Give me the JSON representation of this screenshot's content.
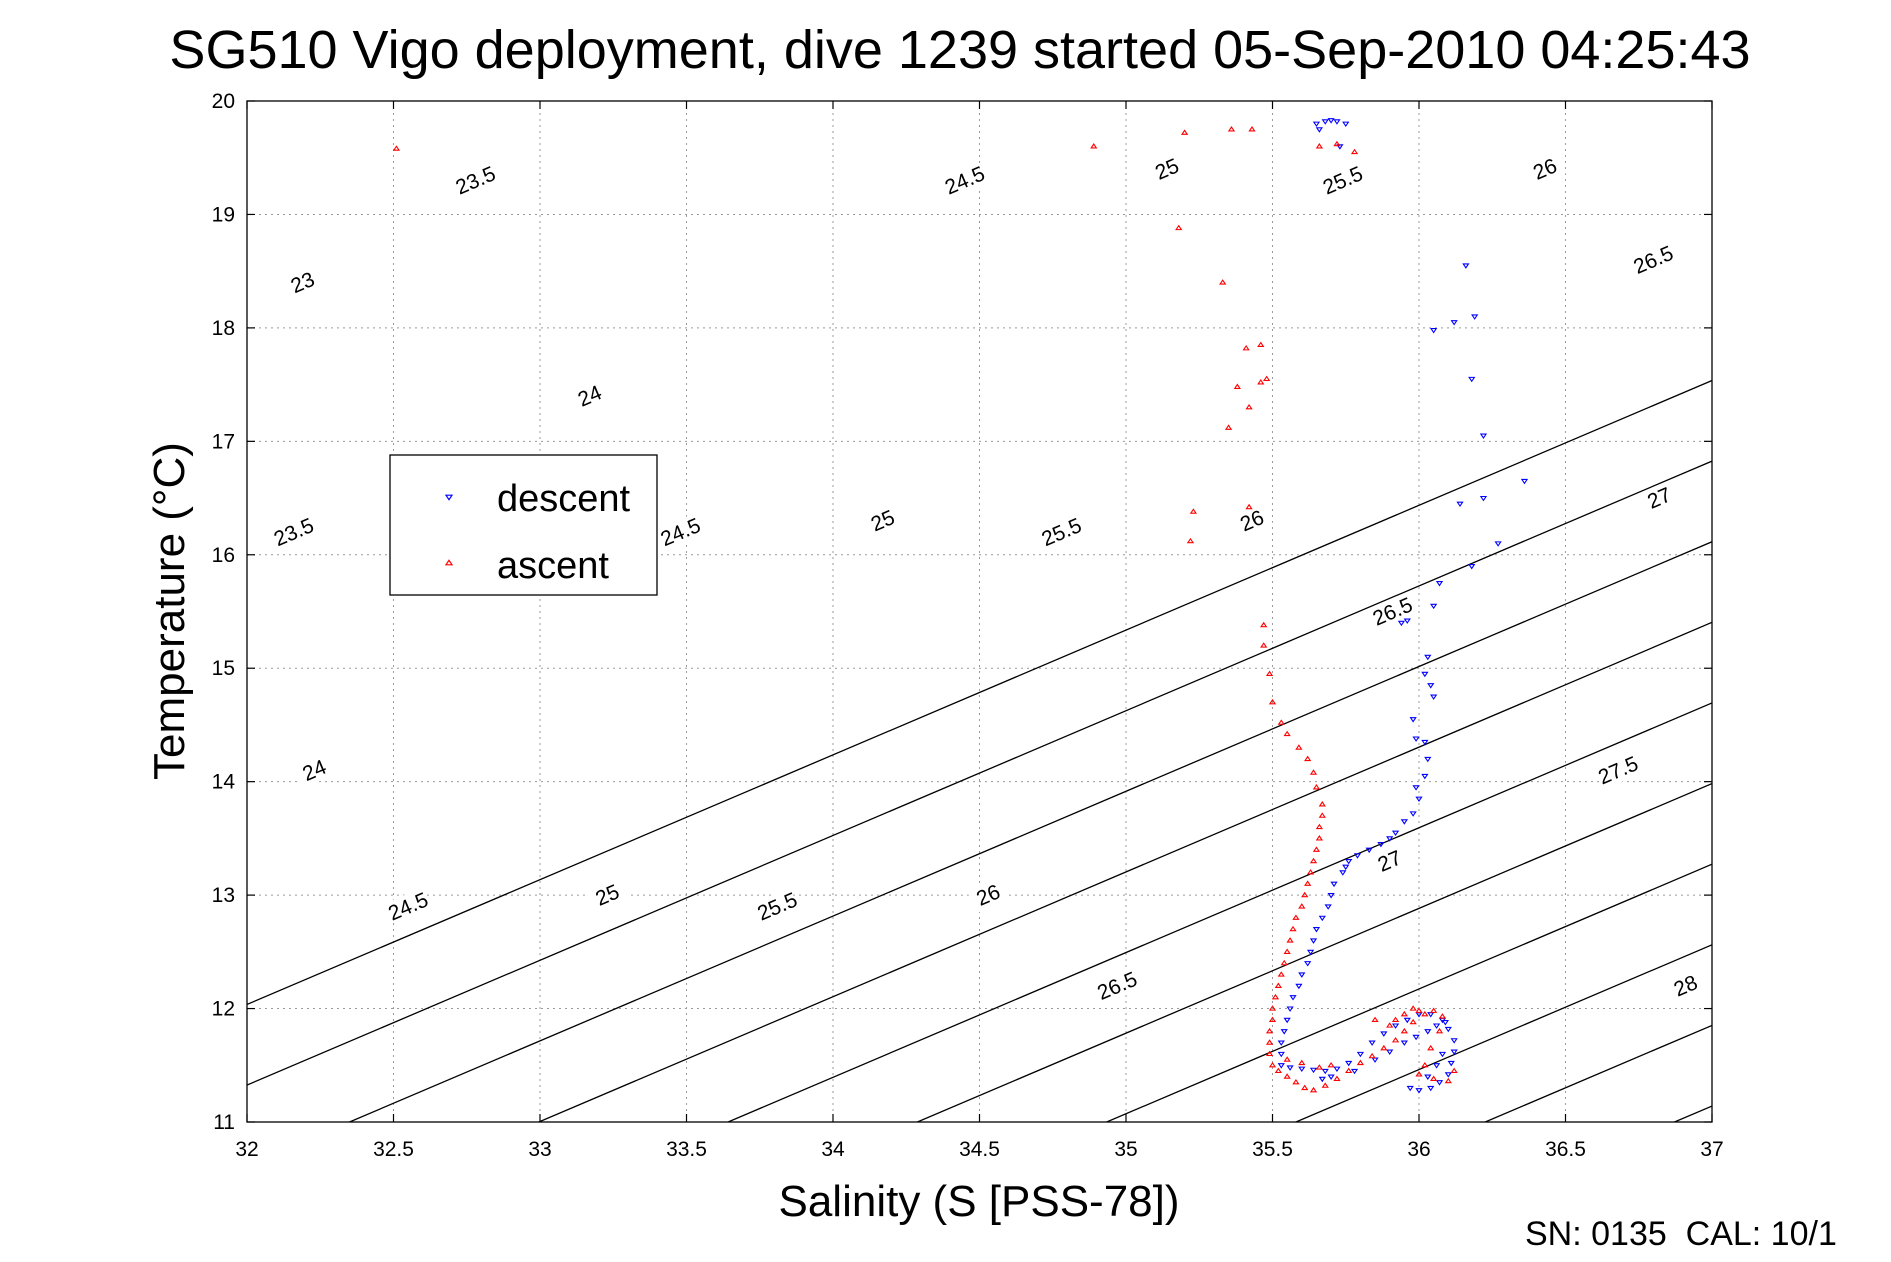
{
  "chart_data": {
    "type": "scatter",
    "title": "SG510 Vigo deployment, dive 1239 started 05-Sep-2010 04:25:43",
    "xlabel": "Salinity (S [PSS-78])",
    "ylabel": "Temperature (°C)",
    "xlim": [
      32,
      37
    ],
    "ylim": [
      11,
      20
    ],
    "x_ticks": [
      "32",
      "32.5",
      "33",
      "33.5",
      "34",
      "34.5",
      "35",
      "35.5",
      "36",
      "36.5",
      "37"
    ],
    "y_ticks": [
      "11",
      "12",
      "13",
      "14",
      "15",
      "16",
      "17",
      "18",
      "19",
      "20"
    ],
    "grid": true,
    "legend_position": "upper-left",
    "footer": "SN: 0135  CAL: 10/1",
    "contours": {
      "description_values": [
        23,
        23.5,
        24,
        24.5,
        25,
        25.5,
        26,
        26.5,
        27,
        27.5,
        28
      ],
      "labels": [
        {
          "text": "23",
          "s": 32.19,
          "t": 18.4
        },
        {
          "text": "23.5",
          "s": 32.78,
          "t": 19.3
        },
        {
          "text": "24.5",
          "s": 34.45,
          "t": 19.3
        },
        {
          "text": "25",
          "s": 35.14,
          "t": 19.4
        },
        {
          "text": "25.5",
          "s": 35.74,
          "t": 19.3
        },
        {
          "text": "26",
          "s": 36.43,
          "t": 19.4
        },
        {
          "text": "26.5",
          "s": 36.8,
          "t": 18.6
        },
        {
          "text": "24",
          "s": 33.17,
          "t": 17.4
        },
        {
          "text": "23.5",
          "s": 32.16,
          "t": 16.2
        },
        {
          "text": "24.5",
          "s": 33.48,
          "t": 16.2
        },
        {
          "text": "25",
          "s": 34.17,
          "t": 16.3
        },
        {
          "text": "25.5",
          "s": 34.78,
          "t": 16.2
        },
        {
          "text": "26",
          "s": 35.43,
          "t": 16.3
        },
        {
          "text": "27",
          "s": 36.82,
          "t": 16.5
        },
        {
          "text": "26.5",
          "s": 35.91,
          "t": 15.5
        },
        {
          "text": "24",
          "s": 32.23,
          "t": 14.1
        },
        {
          "text": "27.5",
          "s": 36.68,
          "t": 14.1
        },
        {
          "text": "24.5",
          "s": 32.55,
          "t": 12.9
        },
        {
          "text": "25",
          "s": 33.23,
          "t": 13.0
        },
        {
          "text": "25.5",
          "s": 33.81,
          "t": 12.9
        },
        {
          "text": "26",
          "s": 34.53,
          "t": 13.0
        },
        {
          "text": "27",
          "s": 35.9,
          "t": 13.3
        },
        {
          "text": "26.5",
          "s": 34.97,
          "t": 12.2
        },
        {
          "text": "28",
          "s": 36.91,
          "t": 12.2
        }
      ]
    },
    "series": [
      {
        "name": "descent",
        "color": "#0000ff",
        "marker": "triangle-down",
        "points": [
          [
            35.65,
            19.8
          ],
          [
            35.68,
            19.82
          ],
          [
            35.7,
            19.83
          ],
          [
            35.72,
            19.82
          ],
          [
            35.75,
            19.8
          ],
          [
            35.66,
            19.75
          ],
          [
            35.73,
            19.6
          ],
          [
            36.16,
            18.55
          ],
          [
            36.19,
            18.1
          ],
          [
            36.12,
            18.05
          ],
          [
            36.05,
            17.98
          ],
          [
            36.18,
            17.55
          ],
          [
            36.22,
            17.05
          ],
          [
            36.36,
            16.65
          ],
          [
            36.22,
            16.5
          ],
          [
            36.14,
            16.45
          ],
          [
            36.27,
            16.1
          ],
          [
            36.18,
            15.9
          ],
          [
            36.07,
            15.75
          ],
          [
            36.05,
            15.55
          ],
          [
            35.96,
            15.42
          ],
          [
            35.94,
            15.4
          ],
          [
            36.03,
            15.1
          ],
          [
            36.02,
            14.95
          ],
          [
            36.04,
            14.85
          ],
          [
            36.05,
            14.75
          ],
          [
            35.98,
            14.55
          ],
          [
            35.99,
            14.38
          ],
          [
            36.02,
            14.35
          ],
          [
            36.03,
            14.2
          ],
          [
            36.02,
            14.05
          ],
          [
            35.99,
            13.95
          ],
          [
            36.0,
            13.85
          ],
          [
            35.98,
            13.72
          ],
          [
            35.95,
            13.65
          ],
          [
            35.92,
            13.55
          ],
          [
            35.9,
            13.5
          ],
          [
            35.87,
            13.45
          ],
          [
            35.83,
            13.4
          ],
          [
            35.79,
            13.35
          ],
          [
            35.76,
            13.3
          ],
          [
            35.75,
            13.25
          ],
          [
            35.74,
            13.2
          ],
          [
            35.71,
            13.1
          ],
          [
            35.7,
            13.0
          ],
          [
            35.69,
            12.9
          ],
          [
            35.67,
            12.8
          ],
          [
            35.65,
            12.7
          ],
          [
            35.64,
            12.6
          ],
          [
            35.63,
            12.5
          ],
          [
            35.62,
            12.4
          ],
          [
            35.6,
            12.3
          ],
          [
            35.59,
            12.2
          ],
          [
            35.57,
            12.1
          ],
          [
            35.56,
            12.0
          ],
          [
            35.55,
            11.9
          ],
          [
            35.54,
            11.8
          ],
          [
            35.53,
            11.7
          ],
          [
            35.53,
            11.6
          ],
          [
            35.53,
            11.5
          ],
          [
            35.56,
            11.48
          ],
          [
            35.6,
            11.47
          ],
          [
            35.64,
            11.46
          ],
          [
            35.68,
            11.45
          ],
          [
            35.72,
            11.47
          ],
          [
            35.76,
            11.52
          ],
          [
            35.8,
            11.6
          ],
          [
            35.84,
            11.7
          ],
          [
            35.88,
            11.78
          ],
          [
            35.92,
            11.85
          ],
          [
            35.96,
            11.9
          ],
          [
            36.0,
            11.95
          ],
          [
            36.04,
            11.95
          ],
          [
            36.08,
            11.9
          ],
          [
            36.1,
            11.82
          ],
          [
            36.12,
            11.72
          ],
          [
            36.12,
            11.62
          ],
          [
            36.11,
            11.52
          ],
          [
            36.1,
            11.42
          ],
          [
            36.07,
            11.35
          ],
          [
            36.04,
            11.3
          ],
          [
            36.0,
            11.28
          ],
          [
            35.97,
            11.3
          ],
          [
            36.03,
            11.4
          ],
          [
            36.06,
            11.5
          ],
          [
            36.08,
            11.6
          ],
          [
            35.67,
            11.38
          ],
          [
            35.7,
            11.4
          ],
          [
            35.78,
            11.45
          ],
          [
            35.85,
            11.55
          ],
          [
            35.9,
            11.62
          ],
          [
            35.95,
            11.7
          ],
          [
            35.99,
            11.75
          ],
          [
            36.03,
            11.8
          ],
          [
            36.06,
            11.85
          ],
          [
            36.09,
            11.88
          ]
        ]
      },
      {
        "name": "ascent",
        "color": "#ff0000",
        "marker": "triangle-up",
        "points": [
          [
            32.51,
            19.58
          ],
          [
            34.89,
            19.6
          ],
          [
            35.2,
            19.72
          ],
          [
            35.36,
            19.75
          ],
          [
            35.43,
            19.75
          ],
          [
            35.66,
            19.6
          ],
          [
            35.72,
            19.62
          ],
          [
            35.78,
            19.55
          ],
          [
            35.18,
            18.88
          ],
          [
            35.33,
            18.4
          ],
          [
            35.41,
            17.82
          ],
          [
            35.46,
            17.85
          ],
          [
            35.48,
            17.55
          ],
          [
            35.46,
            17.52
          ],
          [
            35.38,
            17.48
          ],
          [
            35.42,
            17.3
          ],
          [
            35.35,
            17.12
          ],
          [
            35.23,
            16.38
          ],
          [
            35.22,
            16.12
          ],
          [
            35.42,
            16.42
          ],
          [
            35.47,
            15.38
          ],
          [
            35.47,
            15.2
          ],
          [
            35.49,
            14.95
          ],
          [
            35.5,
            14.7
          ],
          [
            35.53,
            14.52
          ],
          [
            35.55,
            14.42
          ],
          [
            35.59,
            14.3
          ],
          [
            35.62,
            14.2
          ],
          [
            35.64,
            14.08
          ],
          [
            35.65,
            13.95
          ],
          [
            35.67,
            13.8
          ],
          [
            35.67,
            13.7
          ],
          [
            35.66,
            13.6
          ],
          [
            35.66,
            13.5
          ],
          [
            35.65,
            13.4
          ],
          [
            35.64,
            13.3
          ],
          [
            35.63,
            13.2
          ],
          [
            35.62,
            13.1
          ],
          [
            35.61,
            13.0
          ],
          [
            35.6,
            12.9
          ],
          [
            35.58,
            12.8
          ],
          [
            35.57,
            12.7
          ],
          [
            35.56,
            12.6
          ],
          [
            35.55,
            12.5
          ],
          [
            35.54,
            12.4
          ],
          [
            35.53,
            12.3
          ],
          [
            35.52,
            12.2
          ],
          [
            35.51,
            12.1
          ],
          [
            35.5,
            12.0
          ],
          [
            35.5,
            11.9
          ],
          [
            35.49,
            11.8
          ],
          [
            35.49,
            11.7
          ],
          [
            35.49,
            11.6
          ],
          [
            35.5,
            11.5
          ],
          [
            35.52,
            11.45
          ],
          [
            35.55,
            11.4
          ],
          [
            35.58,
            11.35
          ],
          [
            35.61,
            11.3
          ],
          [
            35.64,
            11.28
          ],
          [
            35.68,
            11.32
          ],
          [
            35.72,
            11.38
          ],
          [
            35.76,
            11.45
          ],
          [
            35.8,
            11.52
          ],
          [
            35.84,
            11.58
          ],
          [
            35.88,
            11.65
          ],
          [
            35.92,
            11.72
          ],
          [
            35.95,
            11.8
          ],
          [
            35.98,
            11.88
          ],
          [
            36.02,
            11.95
          ],
          [
            36.05,
            11.98
          ],
          [
            36.08,
            11.93
          ],
          [
            36.07,
            11.8
          ],
          [
            36.04,
            11.65
          ],
          [
            36.02,
            11.5
          ],
          [
            36.0,
            11.42
          ],
          [
            36.05,
            11.38
          ],
          [
            36.1,
            11.36
          ],
          [
            36.12,
            11.45
          ],
          [
            35.92,
            11.9
          ],
          [
            35.95,
            11.95
          ],
          [
            35.9,
            11.85
          ],
          [
            35.85,
            11.9
          ],
          [
            35.98,
            12.0
          ],
          [
            36.0,
            11.98
          ],
          [
            35.55,
            11.55
          ],
          [
            35.6,
            11.52
          ],
          [
            35.66,
            11.48
          ],
          [
            35.7,
            11.5
          ]
        ]
      }
    ]
  }
}
